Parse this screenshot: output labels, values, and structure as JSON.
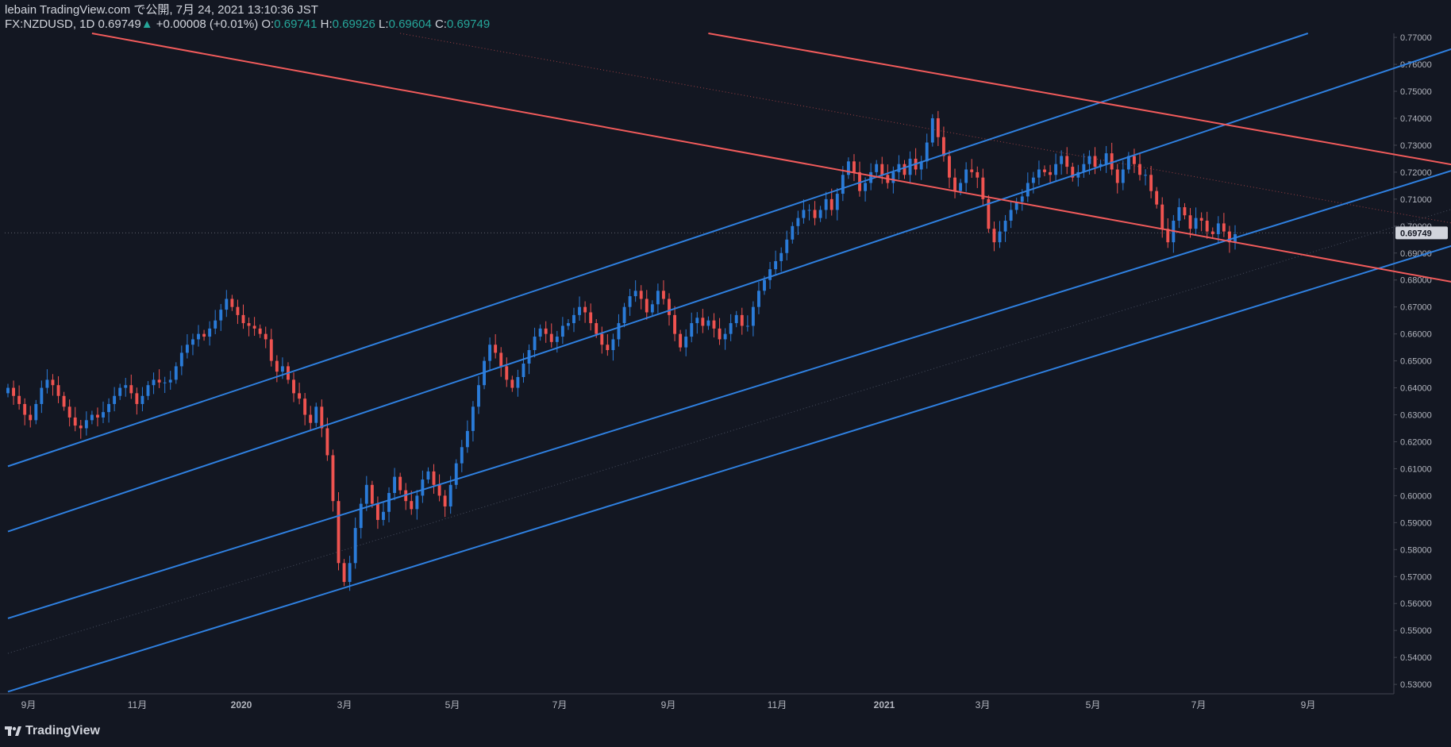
{
  "header": {
    "publish_line": "lebain TradingView.com で公開, 7月 24, 2021 13:10:36 JST",
    "symbol": "FX:NZDUSD, 1D",
    "last": "0.69749",
    "change_arrow": "▲",
    "change": "+0.00008 (+0.01%)",
    "o_label": "O:",
    "o_value": "0.69741",
    "h_label": "H:",
    "h_value": "0.69926",
    "l_label": "L:",
    "l_value": "0.69604",
    "c_label": "C:",
    "c_value": "0.69749"
  },
  "footer": {
    "brand": "TradingView",
    "icon": "tradingview-logo-icon"
  },
  "colors": {
    "background": "#131722",
    "bull": "#2a7bd8",
    "bear": "#ef5350",
    "channel_line": "#2f80e0",
    "down_line": "#f15b5b",
    "axis_text": "#b2b5be"
  },
  "chart_data": {
    "type": "candlestick",
    "symbol": "NZDUSD",
    "timeframe": "1D",
    "x_axis": {
      "labels": [
        "9月",
        "11月",
        "2020",
        "3月",
        "5月",
        "7月",
        "9月",
        "11月",
        "2021",
        "3月",
        "5月",
        "7月",
        "9月"
      ]
    },
    "y_axis": {
      "range": [
        0.5265,
        0.7715
      ],
      "tick_labels": [
        "0.77000",
        "0.76000",
        "0.75000",
        "0.74000",
        "0.73000",
        "0.72000",
        "0.71000",
        "0.70000",
        "0.69000",
        "0.68000",
        "0.67000",
        "0.66000",
        "0.65000",
        "0.64000",
        "0.63000",
        "0.62000",
        "0.61000",
        "0.60000",
        "0.59000",
        "0.58000",
        "0.57000",
        "0.56000",
        "0.55000",
        "0.54000",
        "0.53000"
      ]
    },
    "last_price_label": "0.69749",
    "series_close": [
      0.64,
      0.637,
      0.634,
      0.63,
      0.628,
      0.634,
      0.64,
      0.643,
      0.641,
      0.637,
      0.633,
      0.629,
      0.626,
      0.625,
      0.628,
      0.63,
      0.629,
      0.631,
      0.634,
      0.637,
      0.64,
      0.641,
      0.638,
      0.634,
      0.637,
      0.641,
      0.643,
      0.642,
      0.642,
      0.643,
      0.648,
      0.653,
      0.656,
      0.658,
      0.66,
      0.659,
      0.662,
      0.665,
      0.669,
      0.673,
      0.67,
      0.667,
      0.664,
      0.663,
      0.662,
      0.66,
      0.658,
      0.65,
      0.646,
      0.648,
      0.643,
      0.638,
      0.636,
      0.63,
      0.627,
      0.633,
      0.625,
      0.615,
      0.598,
      0.575,
      0.568,
      0.575,
      0.588,
      0.597,
      0.604,
      0.597,
      0.591,
      0.594,
      0.601,
      0.607,
      0.602,
      0.598,
      0.595,
      0.6,
      0.606,
      0.609,
      0.604,
      0.6,
      0.596,
      0.604,
      0.612,
      0.618,
      0.624,
      0.633,
      0.641,
      0.65,
      0.656,
      0.653,
      0.648,
      0.643,
      0.64,
      0.644,
      0.649,
      0.654,
      0.659,
      0.662,
      0.66,
      0.657,
      0.659,
      0.663,
      0.664,
      0.667,
      0.67,
      0.668,
      0.664,
      0.66,
      0.656,
      0.654,
      0.658,
      0.664,
      0.67,
      0.674,
      0.676,
      0.673,
      0.668,
      0.671,
      0.676,
      0.673,
      0.667,
      0.66,
      0.655,
      0.659,
      0.664,
      0.666,
      0.663,
      0.665,
      0.662,
      0.658,
      0.66,
      0.664,
      0.667,
      0.663,
      0.663,
      0.67,
      0.676,
      0.68,
      0.684,
      0.687,
      0.69,
      0.695,
      0.7,
      0.703,
      0.706,
      0.706,
      0.703,
      0.706,
      0.71,
      0.706,
      0.712,
      0.719,
      0.724,
      0.72,
      0.713,
      0.716,
      0.72,
      0.723,
      0.719,
      0.716,
      0.72,
      0.723,
      0.719,
      0.725,
      0.721,
      0.724,
      0.731,
      0.74,
      0.733,
      0.726,
      0.718,
      0.713,
      0.716,
      0.721,
      0.72,
      0.718,
      0.71,
      0.699,
      0.694,
      0.698,
      0.702,
      0.706,
      0.709,
      0.711,
      0.716,
      0.718,
      0.721,
      0.72,
      0.719,
      0.723,
      0.726,
      0.722,
      0.718,
      0.72,
      0.723,
      0.726,
      0.722,
      0.723,
      0.727,
      0.721,
      0.716,
      0.721,
      0.726,
      0.723,
      0.719,
      0.719,
      0.713,
      0.708,
      0.699,
      0.694,
      0.702,
      0.707,
      0.704,
      0.699,
      0.703,
      0.702,
      0.698,
      0.697,
      0.701,
      0.698,
      0.694,
      0.697
    ],
    "trendlines": [
      {
        "name": "blue-channel-line-1",
        "color": "blue",
        "start": [
          0,
          0.6109
        ],
        "end": [
          232,
          0.7715
        ]
      },
      {
        "name": "blue-channel-line-2",
        "color": "blue",
        "start": [
          0,
          0.5867
        ],
        "end": [
          266,
          0.7715
        ]
      },
      {
        "name": "blue-channel-line-3",
        "color": "blue",
        "start": [
          0,
          0.5545
        ],
        "end": [
          294,
          0.744
        ]
      },
      {
        "name": "blue-channel-line-4",
        "color": "blue",
        "start": [
          0,
          0.5273
        ],
        "end": [
          294,
          0.716
        ]
      },
      {
        "name": "red-down-line-1",
        "color": "red",
        "start": [
          15,
          0.7715
        ],
        "end": [
          294,
          0.6655
        ]
      },
      {
        "name": "red-down-line-2",
        "color": "red",
        "start": [
          125,
          0.7715
        ],
        "end": [
          294,
          0.7095
        ]
      }
    ],
    "dotted_lines": [
      {
        "name": "red-dotted-line",
        "start": [
          70,
          0.7715
        ],
        "end": [
          294,
          0.6875
        ]
      },
      {
        "name": "mid-dotted-line",
        "start": [
          0,
          0.5415
        ],
        "end": [
          294,
          0.7295
        ]
      }
    ],
    "last_price_line": 0.69749
  }
}
